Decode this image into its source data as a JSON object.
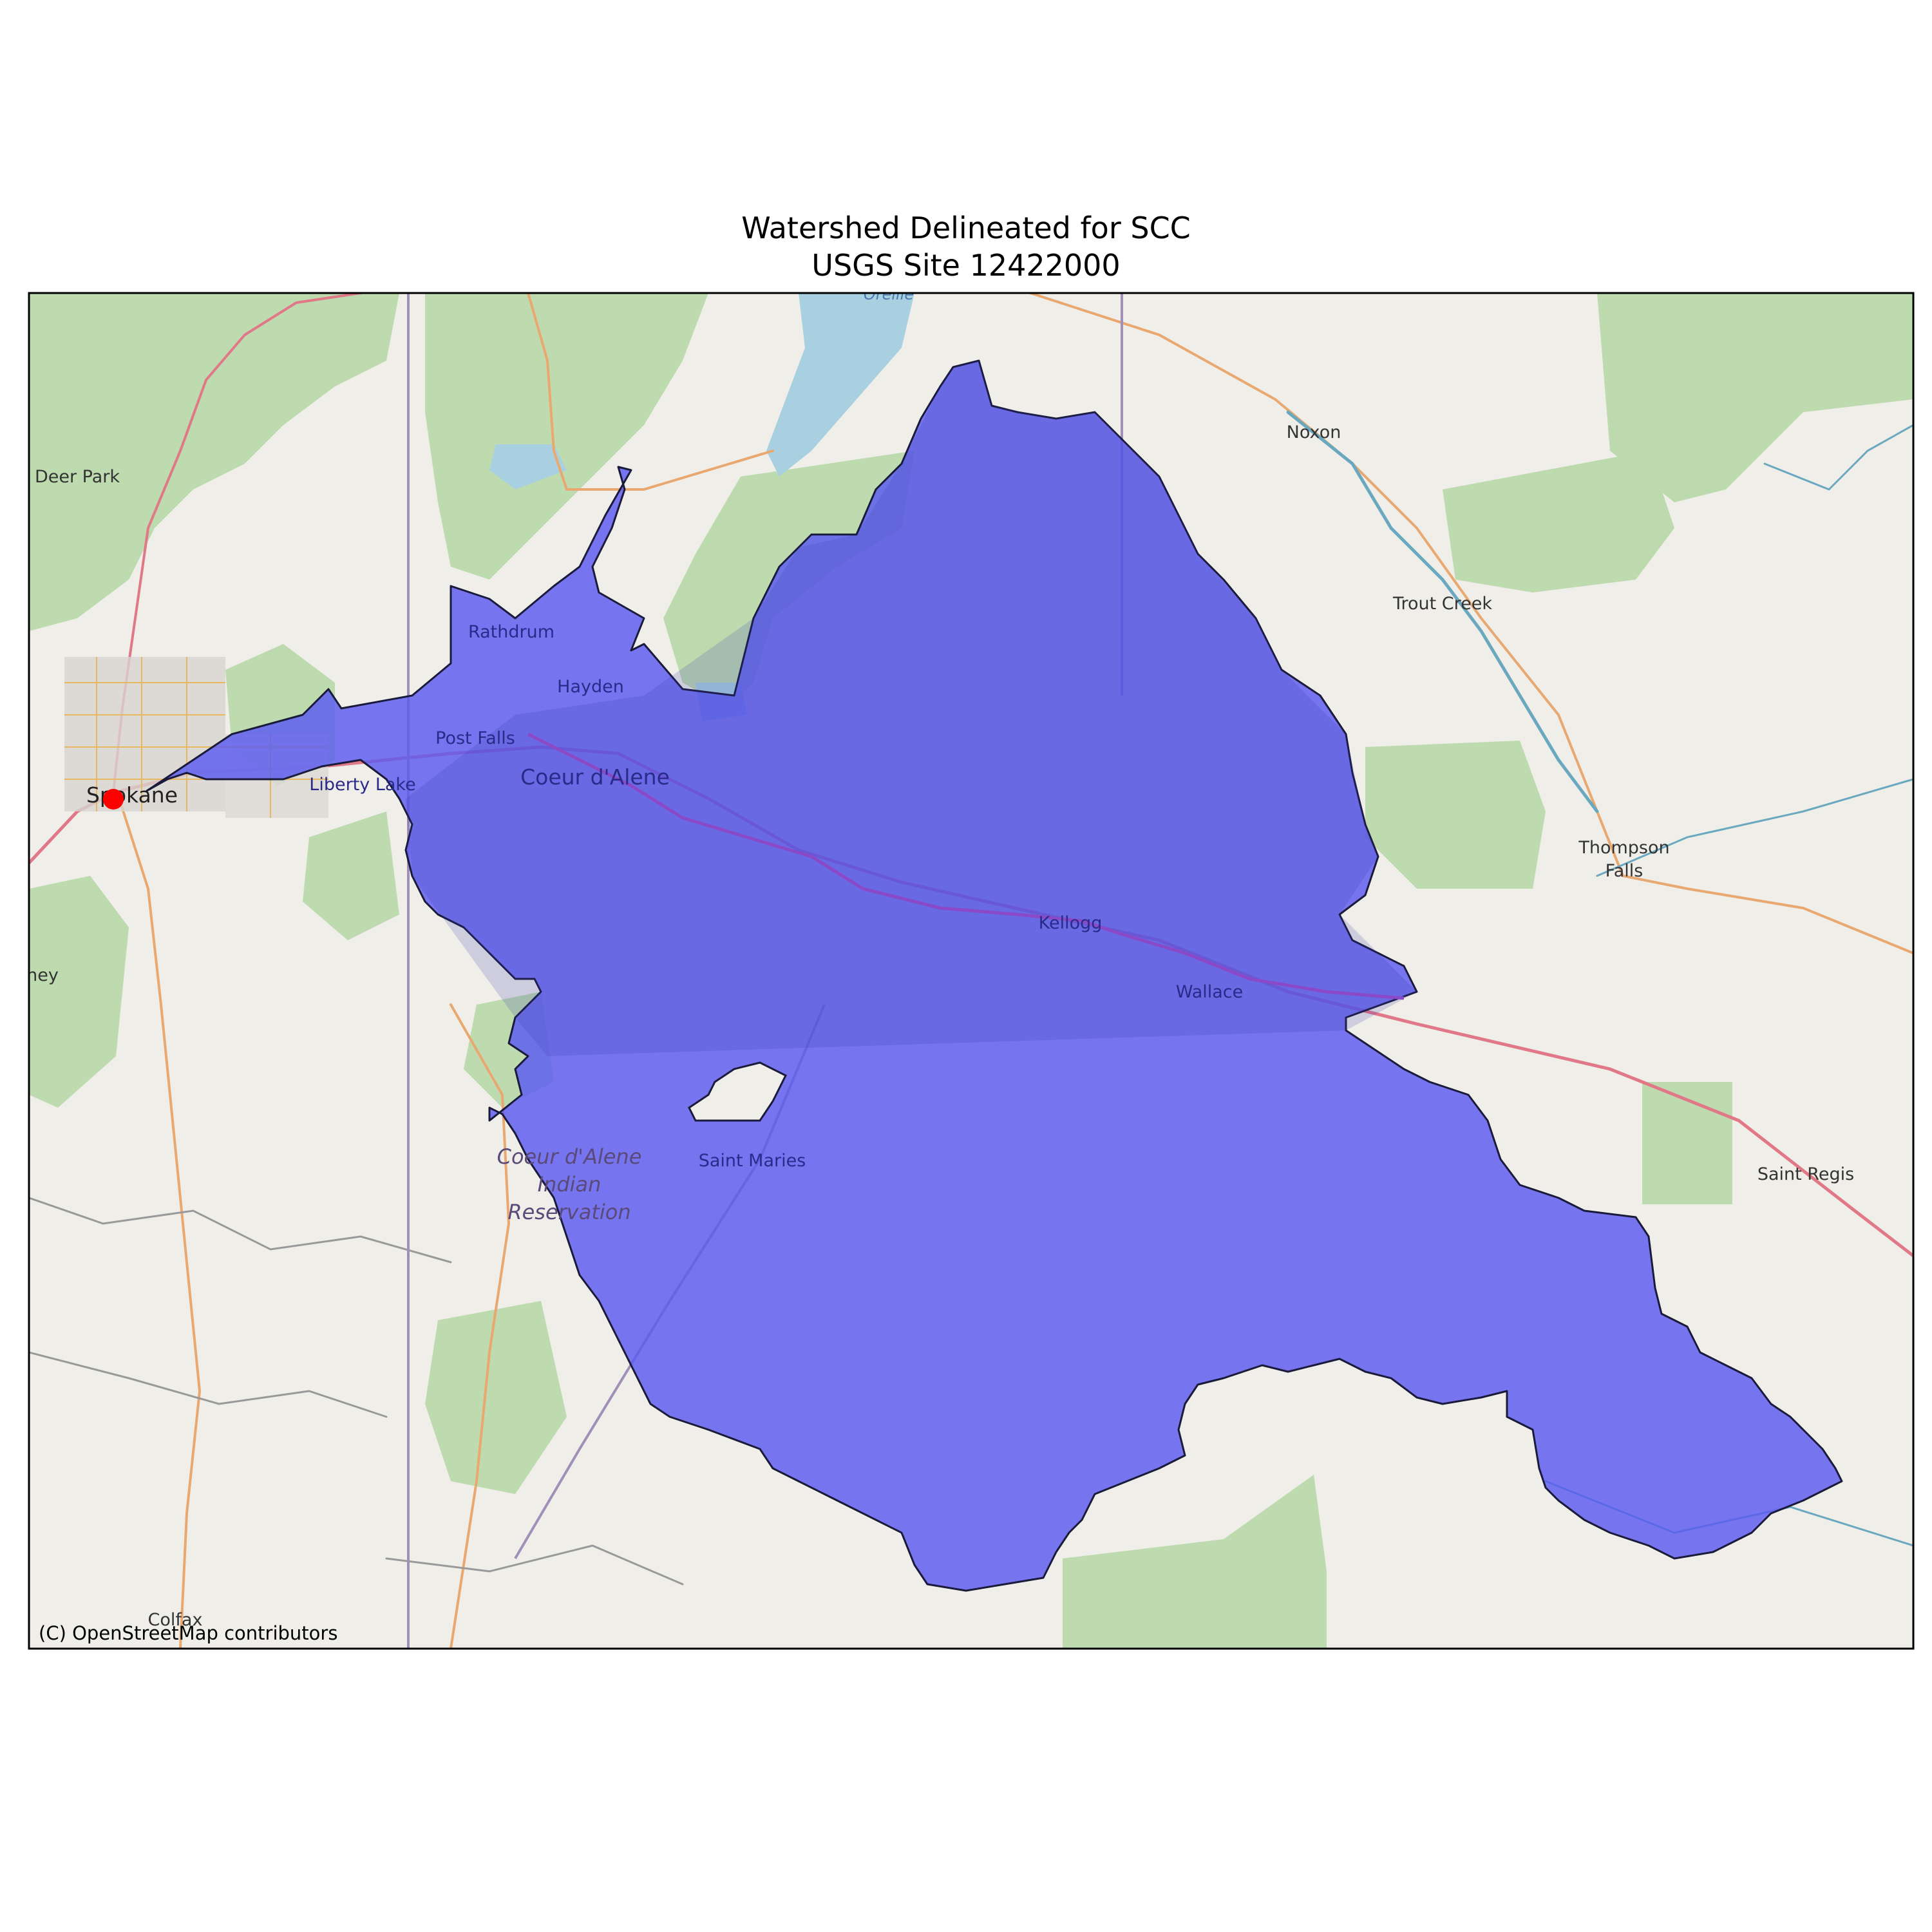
{
  "title": {
    "line1": "Watershed Delineated for SCC",
    "line2": "USGS Site 12422000"
  },
  "attribution": "(C) OpenStreetMap contributors",
  "colors": {
    "watershed_fill": "#5a5af0",
    "watershed_edge": "#1a1a3a",
    "gauge_marker": "#ff0000",
    "land": "#f0eee8",
    "forest": "#b8d8a8",
    "water": "#a8d0e0",
    "road_major": "#e07888",
    "road_secondary": "#e8a870"
  },
  "places": [
    {
      "id": "oreille",
      "text": "Oreille",
      "kind": "water"
    },
    {
      "id": "deer-park",
      "text": "Deer Park",
      "kind": "town"
    },
    {
      "id": "noxon",
      "text": "Noxon",
      "kind": "town"
    },
    {
      "id": "trout-creek",
      "text": "Trout Creek",
      "kind": "town"
    },
    {
      "id": "rathdrum",
      "text": "Rathdrum",
      "kind": "inside"
    },
    {
      "id": "hayden",
      "text": "Hayden",
      "kind": "inside"
    },
    {
      "id": "post-falls",
      "text": "Post Falls",
      "kind": "inside"
    },
    {
      "id": "liberty-lake",
      "text": "Liberty Lake",
      "kind": "inside"
    },
    {
      "id": "coeur-dalene",
      "text": "Coeur d'Alene",
      "kind": "inside-big"
    },
    {
      "id": "spokane",
      "text": "Spokane",
      "kind": "city"
    },
    {
      "id": "thompson-1",
      "text": "Thompson",
      "kind": "town"
    },
    {
      "id": "thompson-2",
      "text": "Falls",
      "kind": "town"
    },
    {
      "id": "kellogg",
      "text": "Kellogg",
      "kind": "inside"
    },
    {
      "id": "wallace",
      "text": "Wallace",
      "kind": "inside"
    },
    {
      "id": "ney",
      "text": "ney",
      "kind": "town"
    },
    {
      "id": "reservation-1",
      "text": "Coeur d'Alene",
      "kind": "reservation"
    },
    {
      "id": "reservation-2",
      "text": "Indian",
      "kind": "reservation"
    },
    {
      "id": "reservation-3",
      "text": "Reservation",
      "kind": "reservation"
    },
    {
      "id": "saint-maries",
      "text": "Saint Maries",
      "kind": "inside"
    },
    {
      "id": "saint-regis",
      "text": "Saint Regis",
      "kind": "town"
    },
    {
      "id": "colfax",
      "text": "Colfax",
      "kind": "town"
    }
  ],
  "gauge": {
    "name": "USGS Site 12422000",
    "icon": "gauge-point-icon"
  }
}
